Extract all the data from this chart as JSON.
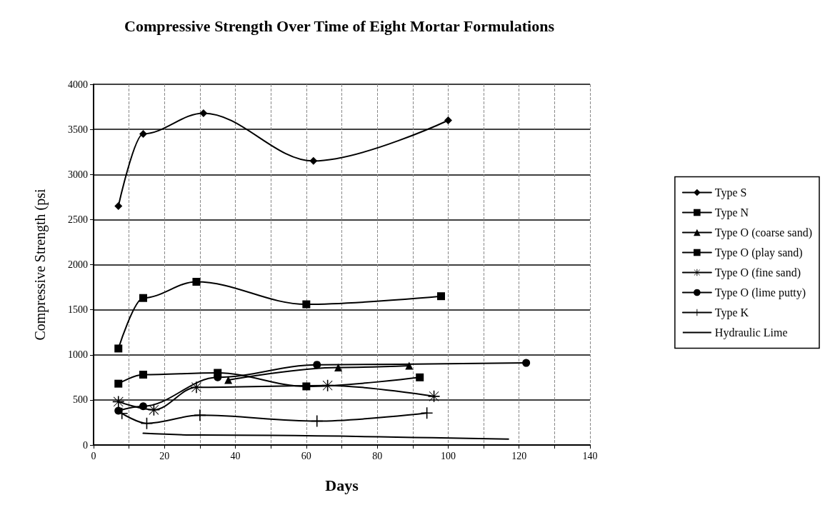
{
  "chart_data": {
    "type": "line",
    "title": "Compressive Strength Over Time of Eight Mortar Formulations",
    "xlabel": "Days",
    "ylabel": "Compressive Strength (psi",
    "xlim": [
      0,
      140
    ],
    "xticks": [
      0,
      {
        "value": 10,
        "label": null
      },
      20,
      {
        "value": 30,
        "label": null
      },
      40,
      {
        "value": 50,
        "label": null
      },
      60,
      {
        "value": 70,
        "label": null
      },
      80,
      {
        "value": 90,
        "label": null
      },
      100,
      {
        "value": 110,
        "label": null
      },
      120,
      {
        "value": 130,
        "label": null
      },
      140
    ],
    "ylim": [
      0,
      4000
    ],
    "yticks": [
      0,
      500,
      1000,
      1500,
      2000,
      2500,
      3000,
      3500,
      4000
    ],
    "grid": true,
    "legend": "right",
    "series": [
      {
        "name": "Type S",
        "color": "#000000",
        "marker": "diamond",
        "x": [
          7,
          14,
          31,
          62,
          100
        ],
        "values": [
          2650,
          3450,
          3680,
          3150,
          3600
        ]
      },
      {
        "name": "Type N",
        "color": "#000000",
        "marker": "square",
        "x": [
          7,
          14,
          29,
          60,
          98
        ],
        "values": [
          1070,
          1630,
          1810,
          1560,
          1650
        ]
      },
      {
        "name": "Type O (coarse sand)",
        "color": "#000000",
        "marker": "triangle",
        "x": [
          38,
          69,
          89
        ],
        "values": [
          720,
          860,
          880
        ]
      },
      {
        "name": "Type O (play sand)",
        "color": "#000000",
        "marker": "square",
        "x": [
          7,
          14,
          35,
          60,
          92
        ],
        "values": [
          680,
          780,
          800,
          650,
          750
        ]
      },
      {
        "name": "Type O (fine sand)",
        "color": "#000000",
        "marker": "star",
        "x": [
          7,
          17,
          29,
          66,
          96
        ],
        "values": [
          480,
          390,
          640,
          660,
          540
        ]
      },
      {
        "name": "Type O (lime putty)",
        "color": "#000000",
        "marker": "circle",
        "x": [
          7,
          14,
          35,
          63,
          122
        ],
        "values": [
          380,
          430,
          750,
          890,
          910
        ]
      },
      {
        "name": "Type K",
        "color": "#000000",
        "marker": "cross",
        "x": [
          8,
          15,
          30,
          63,
          94
        ],
        "values": [
          350,
          240,
          330,
          265,
          355
        ]
      },
      {
        "name": "Hydraulic Lime",
        "color": "#000000",
        "marker": "none",
        "x": [
          14,
          30,
          117
        ],
        "values": [
          130,
          110,
          65
        ]
      }
    ]
  }
}
